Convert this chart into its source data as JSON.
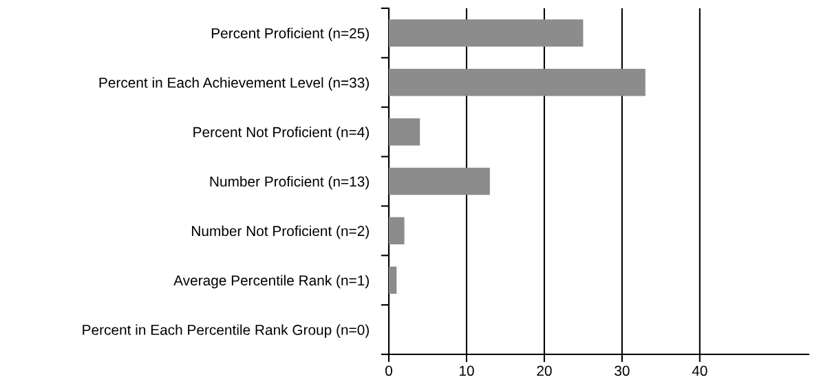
{
  "chart_data": {
    "type": "bar",
    "orientation": "horizontal",
    "categories": [
      "Percent Proficient (n=25)",
      "Percent in Each Achievement Level (n=33)",
      "Percent Not Proficient (n=4)",
      "Number Proficient (n=13)",
      "Number Not Proficient (n=2)",
      "Average Percentile Rank (n=1)",
      "Percent in Each Percentile Rank Group (n=0)"
    ],
    "values": [
      25,
      33,
      4,
      13,
      2,
      1,
      0
    ],
    "color": "#8c8c8c",
    "xlim": [
      0,
      54
    ],
    "xticks": [
      0,
      10,
      20,
      30,
      40
    ],
    "grid": "x"
  }
}
